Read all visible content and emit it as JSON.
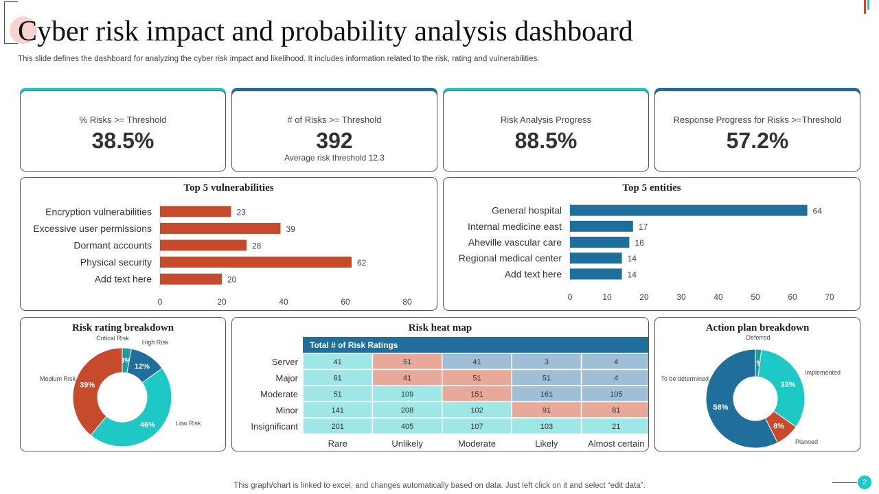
{
  "title": "Cyber risk impact and probability analysis dashboard",
  "subtitle": "This slide defines the dashboard for analyzing the cyber risk impact and likelihood. It includes information related to the risk, rating and vulnerabilities.",
  "colors": {
    "teal": "#1ec8c5",
    "blue": "#1f6e9c",
    "orange": "#c64b2c",
    "heat_teal": "#9fe6e6",
    "heat_salmon": "#e8a99b",
    "heat_blue": "#9fbfd6",
    "header_blue": "#1f6e9c"
  },
  "kpis": [
    {
      "label": "% Risks >= Threshold",
      "value": "38.5%",
      "sub": "",
      "accent": "#1ec8c5"
    },
    {
      "label": "# of Risks >= Threshold",
      "value": "392",
      "sub": "Average risk threshold 12.3",
      "accent": "#1f6e9c"
    },
    {
      "label": "Risk Analysis Progress",
      "value": "88.5%",
      "sub": "",
      "accent": "#1ec8c5"
    },
    {
      "label": "Response Progress for Risks >=Threshold",
      "value": "57.2%",
      "sub": "",
      "accent": "#1f6e9c"
    }
  ],
  "chart_data": [
    {
      "type": "bar",
      "orientation": "horizontal",
      "title": "Top 5 vulnerabilities",
      "categories": [
        "Encryption vulnerabilities",
        "Excessive user permissions",
        "Dormant accounts",
        "Physical security",
        "Add text here"
      ],
      "values": [
        23,
        39,
        28,
        62,
        20
      ],
      "xlim": [
        0,
        80
      ],
      "ticks": [
        0,
        20,
        40,
        60,
        80
      ],
      "color": "#c64b2c"
    },
    {
      "type": "bar",
      "orientation": "horizontal",
      "title": "Top 5 entities",
      "categories": [
        "General hospital",
        "Internal medicine east",
        "Aheville vascular care",
        "Regional medical center",
        "Add text here"
      ],
      "values": [
        64,
        17,
        16,
        14,
        14
      ],
      "xlim": [
        0,
        70
      ],
      "ticks": [
        0,
        10,
        20,
        30,
        40,
        50,
        60,
        70
      ],
      "color": "#1f6e9c"
    },
    {
      "type": "pie",
      "donut": true,
      "title": "Risk rating breakdown",
      "slices": [
        {
          "name": "Critical Risk",
          "value": 3,
          "label": "3%",
          "color": "#1e9aa0"
        },
        {
          "name": "High Risk",
          "value": 12,
          "label": "12%",
          "color": "#1f6e9c"
        },
        {
          "name": "Low Risk",
          "value": 46,
          "label": "46%",
          "color": "#1ec8c5"
        },
        {
          "name": "Medium Risk",
          "value": 39,
          "label": "39%",
          "color": "#c64b2c"
        }
      ]
    },
    {
      "type": "heatmap",
      "title": "Risk heat map",
      "header": "Total # of Risk Ratings",
      "rows": [
        "Server",
        "Major",
        "Moderate",
        "Minor",
        "Insignificant"
      ],
      "columns": [
        "Rare",
        "Unlikely",
        "Moderate",
        "Likely",
        "Almost certain"
      ],
      "values": [
        [
          41,
          51,
          41,
          3,
          4
        ],
        [
          61,
          41,
          51,
          51,
          4
        ],
        [
          51,
          109,
          151,
          161,
          105
        ],
        [
          141,
          208,
          102,
          91,
          81
        ],
        [
          201,
          405,
          107,
          103,
          21
        ]
      ],
      "colors": [
        [
          "#9fe6e6",
          "#e8a99b",
          "#9fbfd6",
          "#9fbfd6",
          "#9fbfd6"
        ],
        [
          "#9fe6e6",
          "#e8a99b",
          "#e8a99b",
          "#9fbfd6",
          "#9fbfd6"
        ],
        [
          "#9fe6e6",
          "#9fe6e6",
          "#e8a99b",
          "#9fbfd6",
          "#9fbfd6"
        ],
        [
          "#9fe6e6",
          "#9fe6e6",
          "#9fe6e6",
          "#e8a99b",
          "#e8a99b"
        ],
        [
          "#9fe6e6",
          "#9fe6e6",
          "#9fe6e6",
          "#9fe6e6",
          "#9fe6e6"
        ]
      ]
    },
    {
      "type": "pie",
      "donut": true,
      "title": "Action plan breakdown",
      "slices": [
        {
          "name": "Deferred",
          "value": 2,
          "label": "2%",
          "color": "#1e9aa0"
        },
        {
          "name": "Implemented",
          "value": 33,
          "label": "33%",
          "color": "#1ec8c5"
        },
        {
          "name": "Planned",
          "value": 8,
          "label": "8%",
          "color": "#c64b2c"
        },
        {
          "name": "To be determined",
          "value": 58,
          "label": "58%",
          "color": "#1f6e9c"
        }
      ]
    }
  ],
  "footer": "This graph/chart is linked to excel, and changes automatically based on data. Just left click on it and select “edit data”.",
  "page_number": "2"
}
